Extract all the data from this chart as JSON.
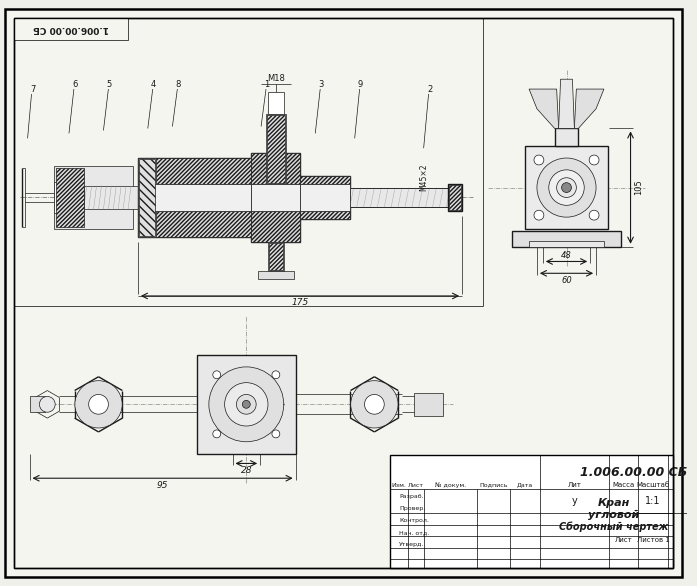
{
  "bg_color": "#f0f0eb",
  "paper_color": "#f5f5f0",
  "line_color": "#1a1a1a",
  "border_color": "#000000",
  "title": "1.006.00.00 СБ",
  "stamp_title": "1.006.00.00 СБ",
  "name1": "Кран",
  "name2": "угловой",
  "name3": "Сборочный чертеж",
  "scale_text": "1:1",
  "lit_text": "у",
  "sheet_text": "Лист",
  "sheets_text": "Листов 1",
  "col_headers": [
    "Изм.",
    "Лист",
    "№ докум.",
    "Подпись",
    "Дата"
  ],
  "row_headers": [
    "Разраб.",
    "Провер.",
    "Контрол.",
    "Нач. отд.",
    "Утверд."
  ],
  "lit_label": "Лит",
  "mass_label": "Масса",
  "scale_label": "Масштаб",
  "dim_175": "175",
  "dim_48": "48",
  "dim_60": "60",
  "dim_105": "105",
  "dim_95": "95",
  "dim_28": "28",
  "m18": "М18",
  "m45": "М45×2",
  "labels": [
    "7",
    "6",
    "5",
    "4",
    "8",
    "1",
    "3",
    "9",
    "2"
  ]
}
